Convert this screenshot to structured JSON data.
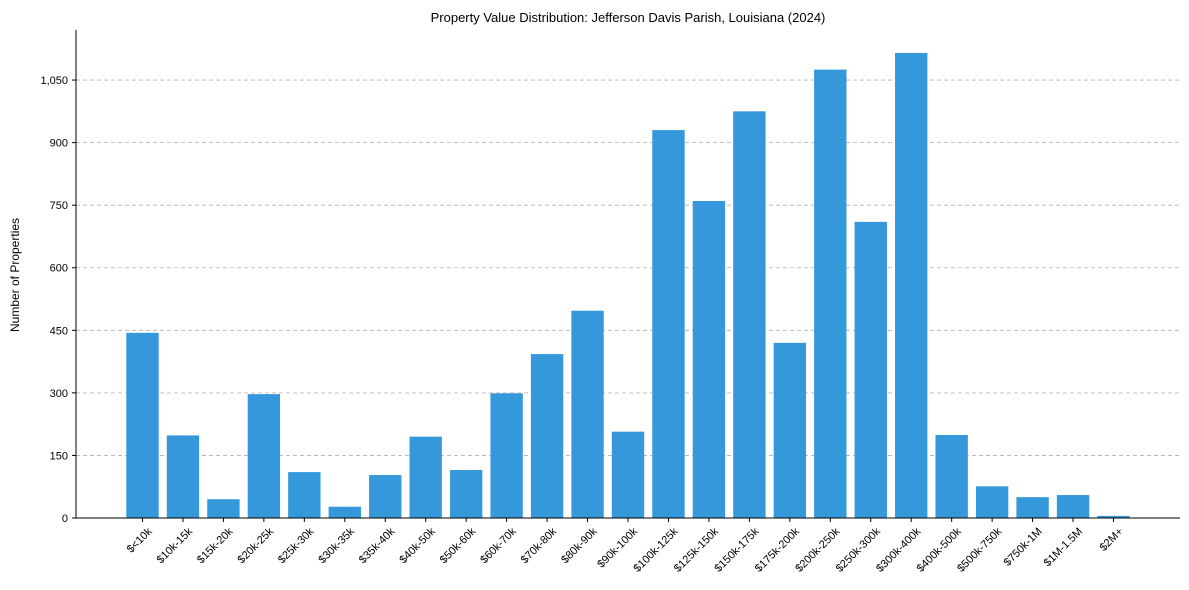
{
  "chart_data": {
    "type": "bar",
    "title": "Property Value Distribution: Jefferson Davis Parish, Louisiana (2024)",
    "xlabel": "",
    "ylabel": "Number of Properties",
    "categories": [
      "$<10k",
      "$10k-15k",
      "$15k-20k",
      "$20k-25k",
      "$25k-30k",
      "$30k-35k",
      "$35k-40k",
      "$40k-50k",
      "$50k-60k",
      "$60k-70k",
      "$70k-80k",
      "$80k-90k",
      "$90k-100k",
      "$100k-125k",
      "$125k-150k",
      "$150k-175k",
      "$175k-200k",
      "$200k-250k",
      "$250k-300k",
      "$300k-400k",
      "$400k-500k",
      "$500k-750k",
      "$750k-1M",
      "$1M-1.5M",
      "$2M+"
    ],
    "values": [
      444,
      198,
      45,
      297,
      110,
      27,
      103,
      195,
      115,
      299,
      393,
      497,
      207,
      930,
      760,
      975,
      420,
      1075,
      710,
      1115,
      199,
      76,
      50,
      55,
      5
    ],
    "ylim": [
      0,
      1170
    ],
    "yticks": [
      0,
      150,
      300,
      450,
      600,
      750,
      900,
      1050
    ],
    "ytick_labels": [
      "0",
      "150",
      "300",
      "450",
      "600",
      "750",
      "900",
      "1,050"
    ],
    "bar_color": "#3498db",
    "grid": "y-dashed"
  }
}
